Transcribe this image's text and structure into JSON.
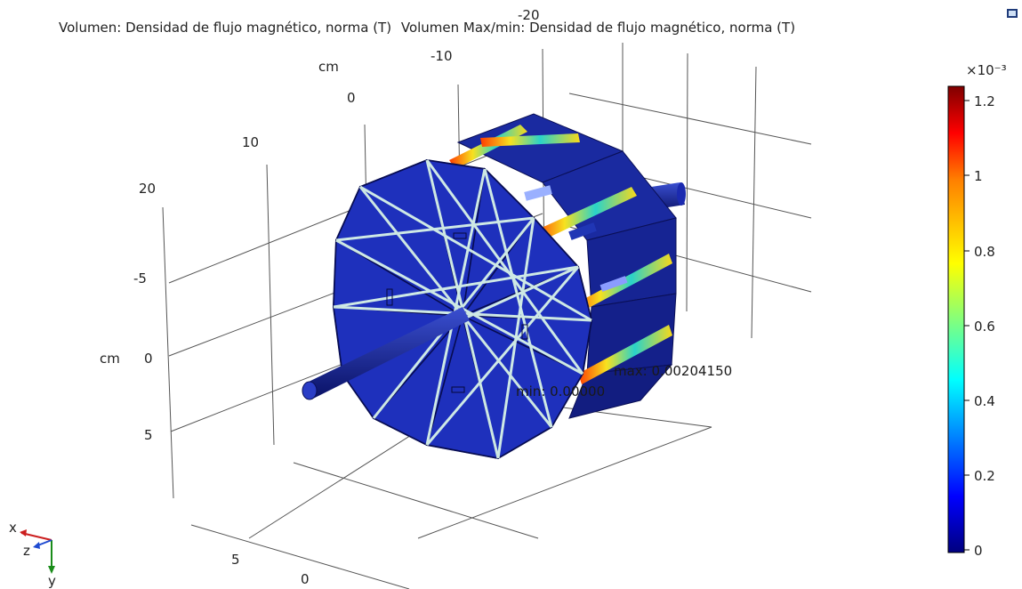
{
  "plot": {
    "title_left": "Volumen: Densidad de flujo magnético, norma (T)",
    "title_right": "Volumen Max/min: Densidad de flujo magnético, norma (T)",
    "annotations": {
      "max": "max: 0.00204150",
      "min": "min: 0.00000"
    }
  },
  "axes": {
    "x_ticks": [
      "-20",
      "-10",
      "0",
      "10",
      "20"
    ],
    "x_unit": "cm",
    "y_ticks": [
      "-5",
      "0",
      "5"
    ],
    "y_unit": "cm",
    "z_ticks": [
      "5",
      "0"
    ]
  },
  "colorbar": {
    "multiplier": "×10⁻³",
    "ticks": [
      "1.2",
      "1",
      "0.8",
      "0.6",
      "0.4",
      "0.2",
      "0"
    ],
    "colormap": [
      "#00007f",
      "#0000ff",
      "#00ffff",
      "#ffff00",
      "#ff7f00",
      "#ff0000",
      "#7f0000"
    ]
  },
  "orientation": {
    "x": "x",
    "y": "y",
    "z": "z"
  },
  "colors": {
    "model_body": "#1a2aa0",
    "model_dark": "#0b1166",
    "winding_high": "#f2d21b",
    "grid": "#555555"
  },
  "icons": {
    "export": "export-icon"
  }
}
